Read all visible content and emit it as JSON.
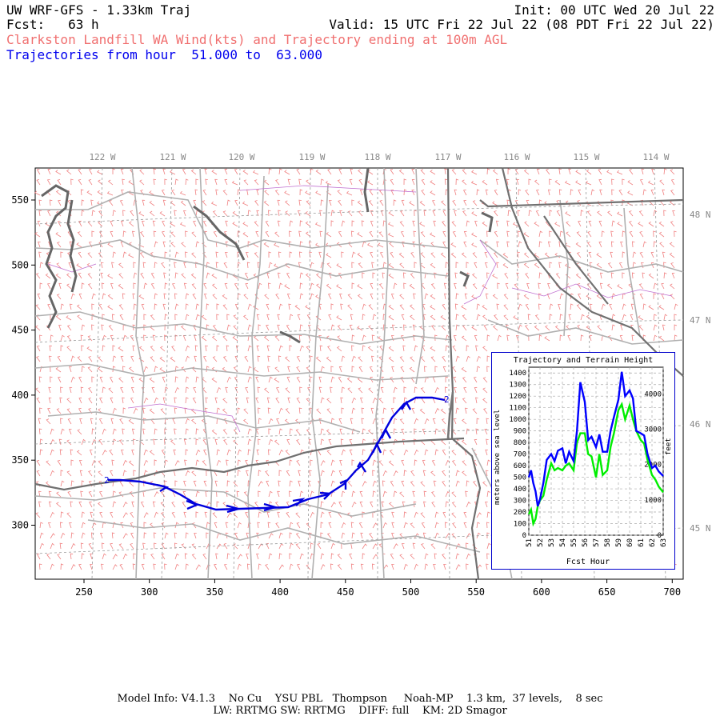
{
  "header": {
    "model": "UW WRF-GFS - 1.33km Traj",
    "init": "Init: 00 UTC Wed 20 Jul 22",
    "fcst": "Fcst:   63 h",
    "valid": "Valid: 15 UTC Fri 22 Jul 22 (08 PDT Fri 22 Jul 22)",
    "subtitle": "Clarkston Landfill WA Wind(kts) and Trajectory ending at 100m AGL",
    "trajectory_range": "Trajectories from hour  51.000 to  63.000"
  },
  "map": {
    "lon_labels": [
      "122 W",
      "121 W",
      "120 W",
      "119 W",
      "118 W",
      "117 W",
      "116 W",
      "115 W",
      "114 W"
    ],
    "lat_labels": [
      "48 N",
      "47 N",
      "46 N",
      "45 N"
    ],
    "x_ticks": [
      "250",
      "300",
      "350",
      "400",
      "450",
      "500",
      "550",
      "600",
      "650",
      "700"
    ],
    "y_ticks": [
      "550",
      "500",
      "450",
      "400",
      "350",
      "300"
    ],
    "colors": {
      "wind_barbs": "#f08080",
      "trajectory": "#0000dd",
      "borders": "#999999",
      "coast": "#666666",
      "grid": "#999999",
      "county": "#b060c0"
    }
  },
  "inset": {
    "title": "Trajectory and Terrain Height",
    "ylabel_left": "meters above sea level",
    "ylabel_right": "feet",
    "xlabel": "Fcst Hour",
    "left_ticks": [
      "1400",
      "1300",
      "1200",
      "1100",
      "1000",
      "900",
      "800",
      "700",
      "600",
      "500",
      "400",
      "300",
      "200",
      "100",
      "0"
    ],
    "right_ticks": [
      "4000",
      "3000",
      "2000",
      "1000",
      "0"
    ],
    "x_ticks": [
      "51",
      "52",
      "53",
      "54",
      "55",
      "56",
      "57",
      "58",
      "59",
      "60",
      "61",
      "62",
      "63"
    ]
  },
  "chart_data": {
    "type": "line",
    "title": "Trajectory and Terrain Height",
    "xlabel": "Fcst Hour",
    "ylabel": "meters above sea level",
    "xlim": [
      51,
      63
    ],
    "ylim": [
      0,
      1450
    ],
    "series": [
      {
        "color": "#0000ff",
        "x": [
          51.0,
          51.2,
          51.4,
          51.6,
          51.8,
          52.0,
          52.3,
          52.6,
          53.0,
          53.3,
          53.6,
          54.0,
          54.3,
          54.6,
          55.0,
          55.3,
          55.6,
          56.0,
          56.3,
          56.6,
          57.0,
          57.3,
          57.6,
          58.0,
          58.3,
          58.6,
          59.0,
          59.3,
          59.6,
          60.0,
          60.3,
          60.6,
          61.0,
          61.3,
          61.6,
          62.0,
          62.3,
          62.6,
          63.0
        ],
        "y": [
          500,
          560,
          450,
          380,
          250,
          310,
          450,
          650,
          700,
          640,
          730,
          750,
          620,
          720,
          640,
          900,
          1320,
          1150,
          820,
          850,
          760,
          870,
          720,
          720,
          900,
          1020,
          1170,
          1410,
          1200,
          1250,
          1180,
          900,
          880,
          860,
          700,
          580,
          600,
          550,
          510
        ]
      },
      {
        "color": "#00ee00",
        "x": [
          51.0,
          51.2,
          51.4,
          51.6,
          51.8,
          52.0,
          52.3,
          52.6,
          53.0,
          53.3,
          53.6,
          54.0,
          54.3,
          54.6,
          55.0,
          55.3,
          55.6,
          56.0,
          56.3,
          56.6,
          57.0,
          57.3,
          57.6,
          58.0,
          58.3,
          58.6,
          59.0,
          59.3,
          59.6,
          60.0,
          60.3,
          60.6,
          61.0,
          61.3,
          61.6,
          62.0,
          62.3,
          62.6,
          63.0
        ],
        "y": [
          180,
          220,
          100,
          140,
          250,
          300,
          340,
          480,
          620,
          560,
          580,
          560,
          600,
          620,
          560,
          800,
          880,
          880,
          700,
          680,
          500,
          700,
          520,
          560,
          760,
          880,
          1080,
          1130,
          1000,
          1120,
          1000,
          900,
          820,
          790,
          650,
          520,
          480,
          420,
          370
        ]
      }
    ]
  }
}
